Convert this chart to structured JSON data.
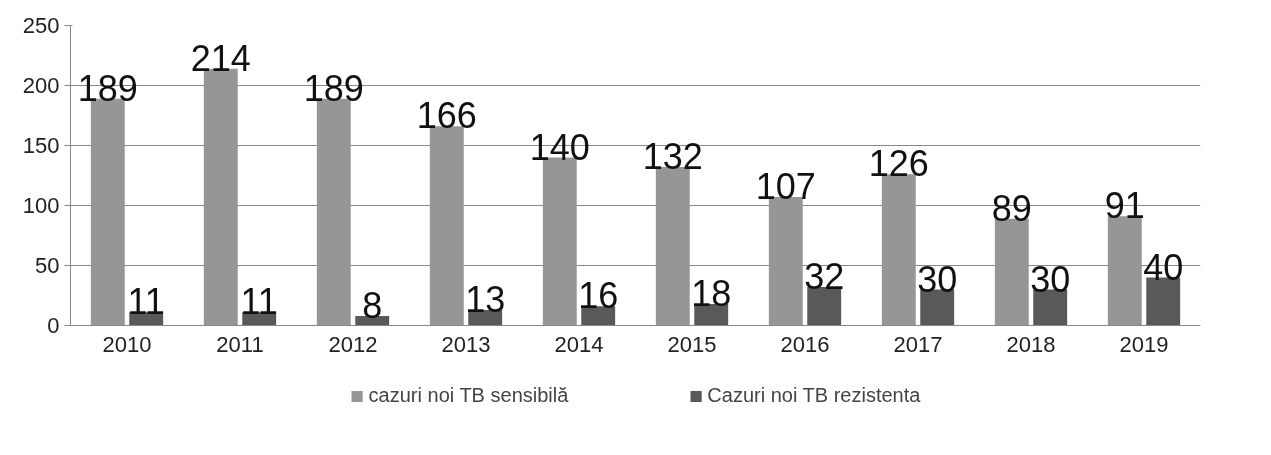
{
  "chart_data": {
    "type": "bar",
    "categories": [
      "2010",
      "2011",
      "2012",
      "2013",
      "2014",
      "2015",
      "2016",
      "2017",
      "2018",
      "2019"
    ],
    "series": [
      {
        "name": "cazuri noi TB sensibilă",
        "color": "#969696",
        "values": [
          189,
          214,
          189,
          166,
          140,
          132,
          107,
          126,
          89,
          91
        ]
      },
      {
        "name": "Cazuri noi TB rezistenta",
        "color": "#595959",
        "values": [
          11,
          11,
          8,
          13,
          16,
          18,
          32,
          30,
          30,
          40
        ]
      }
    ],
    "ylim": [
      0,
      250
    ],
    "yticks": [
      0,
      50,
      100,
      150,
      200,
      250
    ],
    "grid": "y",
    "legend": "bottom",
    "data_labels": true
  }
}
